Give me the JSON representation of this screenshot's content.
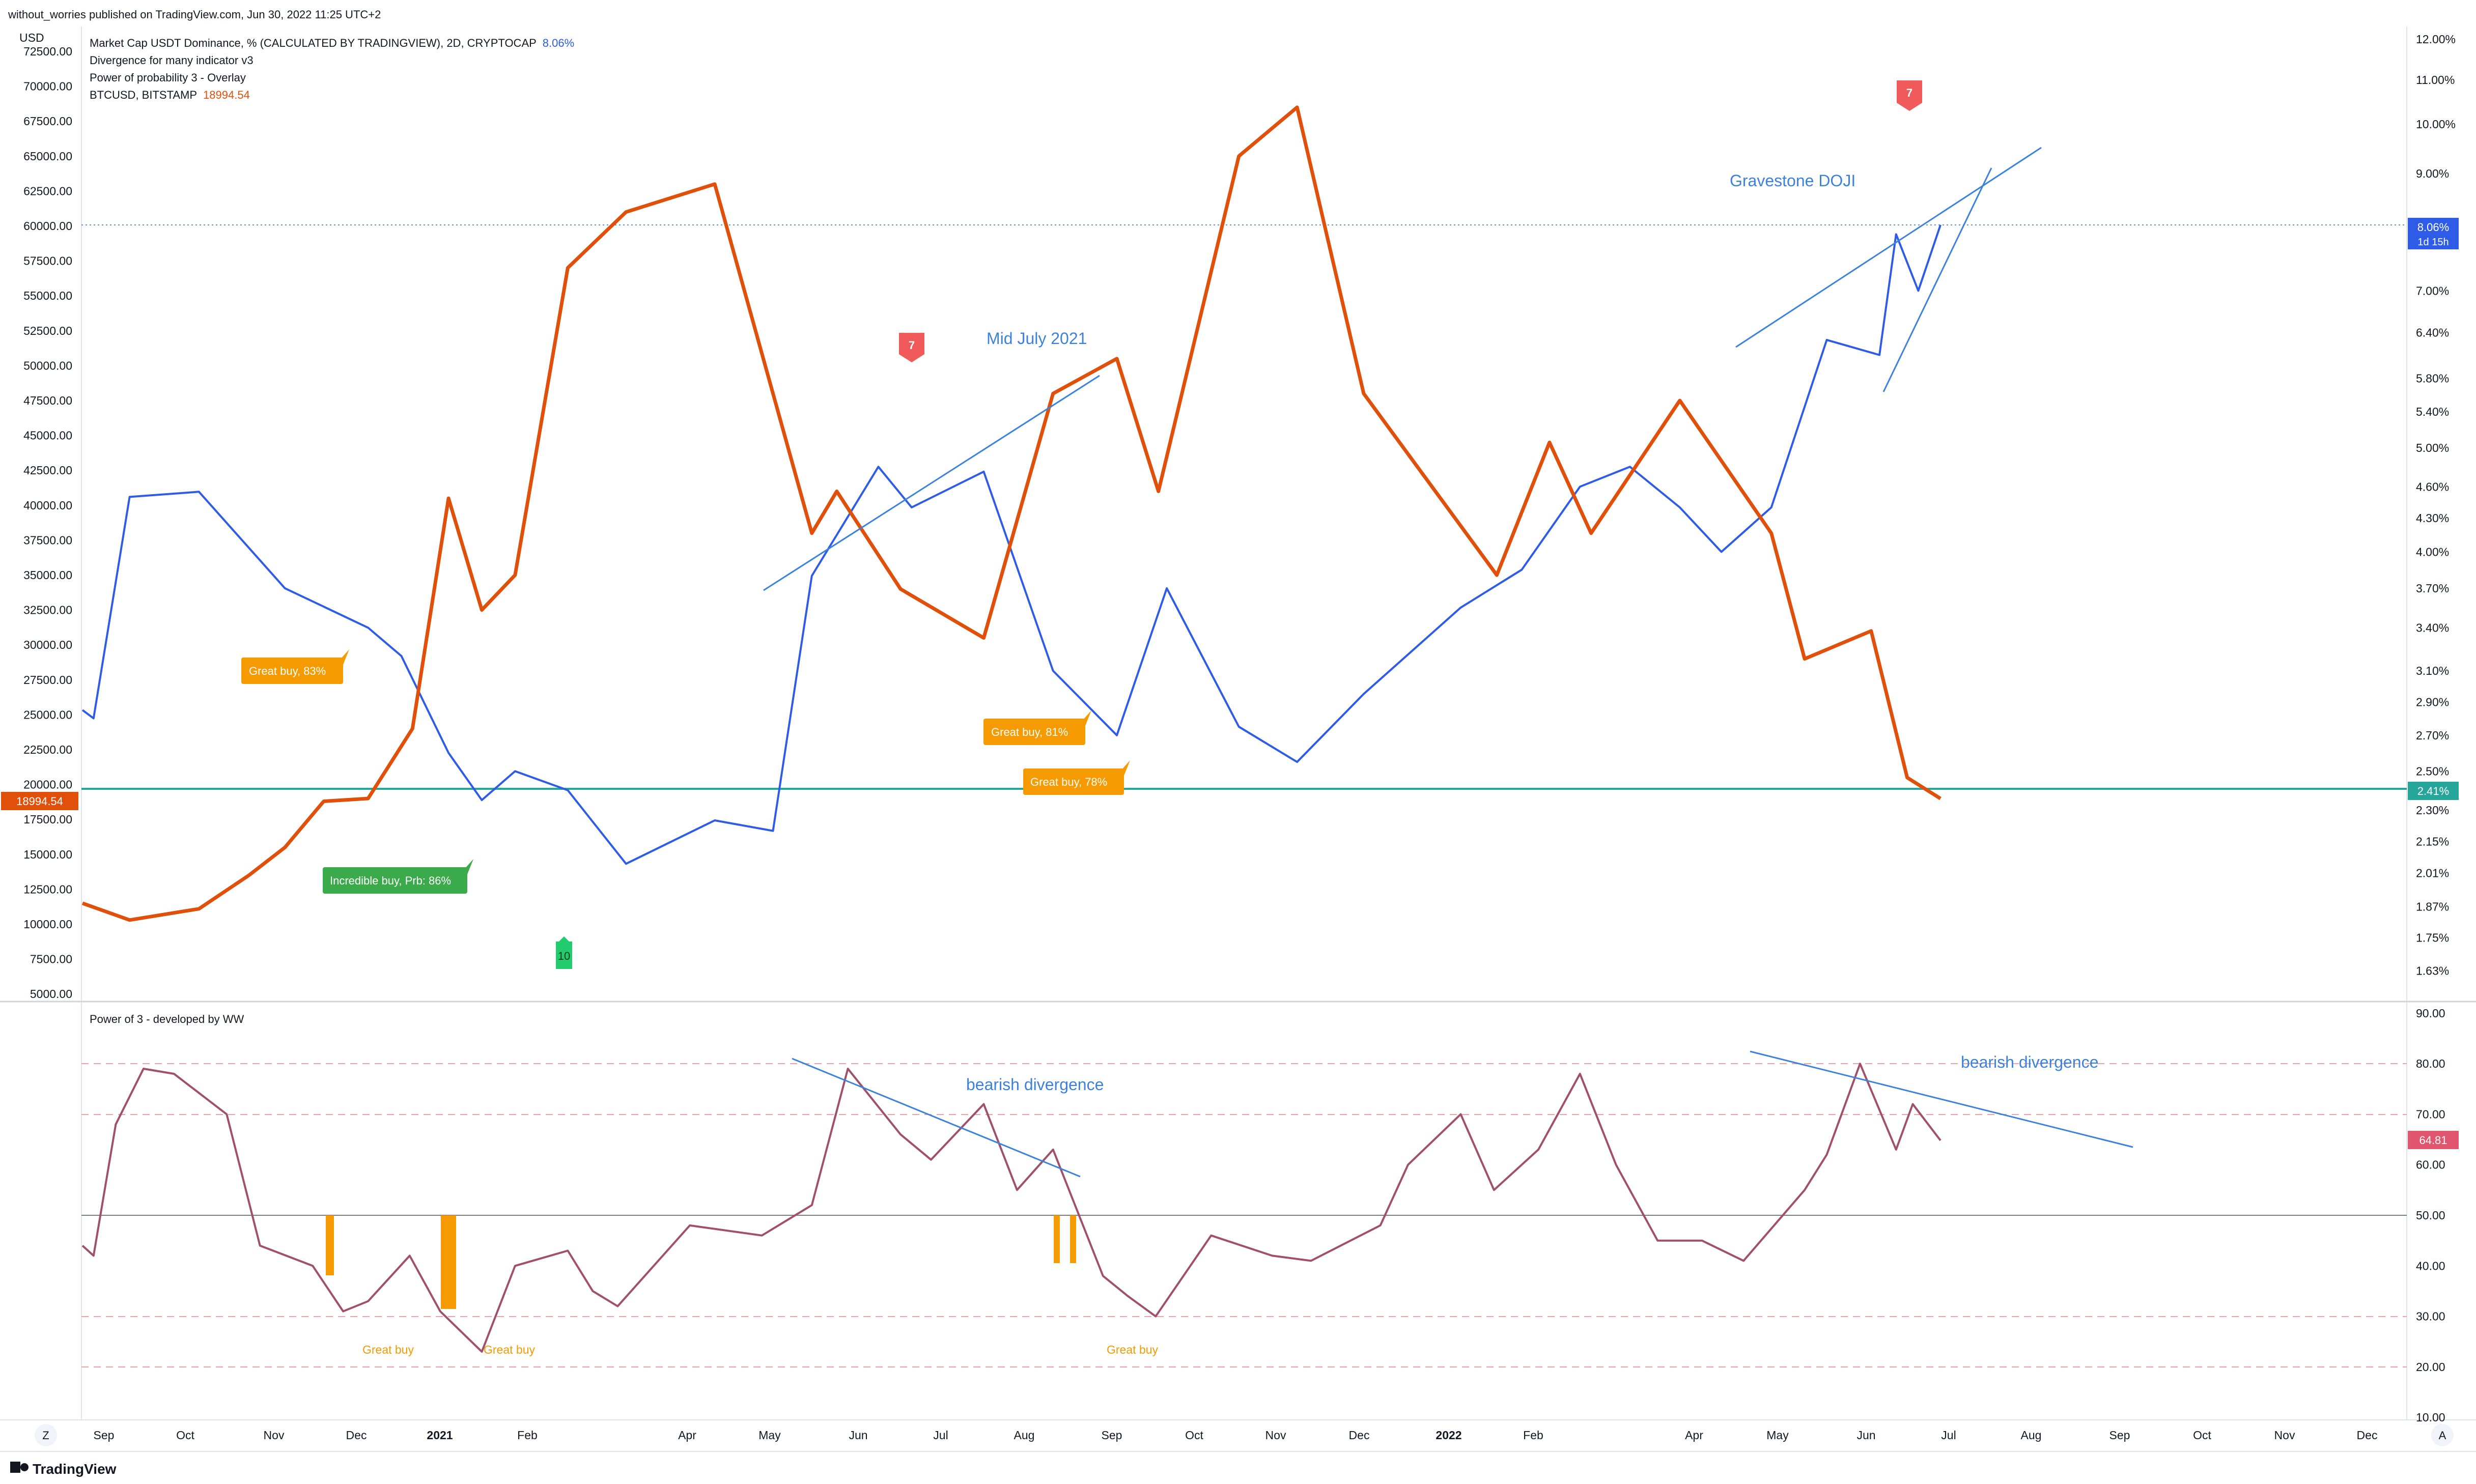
{
  "header": {
    "published_by": "without_worries published on TradingView.com, Jun 30, 2022 11:25 UTC+2"
  },
  "footer": {
    "logo": "TradingView",
    "z_button": "Z",
    "a_button": "A"
  },
  "colors": {
    "btc": "#e0500a",
    "usdt": "#2e5ce6",
    "great_buy": "#f59a00",
    "incredible_buy": "#3aaa4a",
    "sell_tag": "#f05a5a",
    "buy_tag": "#22cc6e",
    "support_line": "#26a69a",
    "annotation": "#3c82dc"
  },
  "main_pane": {
    "left_axis_unit": "USD",
    "legend": [
      {
        "text": "Market Cap USDT Dominance, % (CALCULATED BY TRADINGVIEW), 2D, CRYPTOCAP",
        "value": "8.06%",
        "color": "#2e5ce6"
      },
      {
        "text": "Divergence for many indicator v3",
        "value": "",
        "color": ""
      },
      {
        "text": "Power of probability 3 - Overlay",
        "value": "",
        "color": ""
      },
      {
        "text": "BTCUSD, BITSTAMP",
        "value": "18994.54",
        "color": "#e0500a"
      }
    ],
    "left_ticks": [
      "72500.00",
      "70000.00",
      "67500.00",
      "65000.00",
      "62500.00",
      "60000.00",
      "57500.00",
      "55000.00",
      "52500.00",
      "50000.00",
      "47500.00",
      "45000.00",
      "42500.00",
      "40000.00",
      "37500.00",
      "35000.00",
      "32500.00",
      "30000.00",
      "27500.00",
      "25000.00",
      "22500.00",
      "20000.00",
      "17500.00",
      "15000.00",
      "12500.00",
      "10000.00",
      "7500.00",
      "5000.00"
    ],
    "right_ticks": [
      "12.00%",
      "11.00%",
      "10.00%",
      "9.00%",
      "7.00%",
      "6.40%",
      "5.80%",
      "5.40%",
      "5.00%",
      "4.60%",
      "4.30%",
      "4.00%",
      "3.70%",
      "3.40%",
      "3.10%",
      "2.90%",
      "2.70%",
      "2.50%",
      "2.30%",
      "2.15%",
      "2.01%",
      "1.87%",
      "1.75%",
      "1.63%"
    ],
    "price_tag_btc": "18994.54",
    "price_tag_usdt": "8.06%",
    "price_tag_usdt_sub": "1d 15h",
    "price_tag_support": "2.41%",
    "annotations": {
      "mid_july": "Mid July 2021",
      "gravestone": "Gravestone DOJI"
    },
    "signals": [
      {
        "label": "Great buy,  83%",
        "kind": "great"
      },
      {
        "label": "Great buy,  81%",
        "kind": "great"
      },
      {
        "label": "Great buy,  78%",
        "kind": "great"
      },
      {
        "label": "Incredible buy, Prb: 86%",
        "kind": "incredible"
      }
    ],
    "count_tags": [
      {
        "label": "7",
        "kind": "sell"
      },
      {
        "label": "7",
        "kind": "sell"
      },
      {
        "label": "10",
        "kind": "buy"
      }
    ]
  },
  "sub_pane": {
    "title": "Power of 3 - developed by WW",
    "right_ticks": [
      "90.00",
      "80.00",
      "70.00",
      "60.00",
      "50.00",
      "40.00",
      "30.00",
      "20.00",
      "10.00"
    ],
    "value_tag": "64.81",
    "great_buy_labels": [
      "Great buy",
      "Great buy",
      "Great buy"
    ],
    "divergence_labels": [
      "bearish divergence",
      "bearish divergence"
    ]
  },
  "time_axis": {
    "labels": [
      "Sep",
      "Oct",
      "Nov",
      "Dec",
      "2021",
      "Feb",
      "Apr",
      "May",
      "Jun",
      "Jul",
      "Aug",
      "Sep",
      "Oct",
      "Nov",
      "Dec",
      "2022",
      "Feb",
      "Apr",
      "May",
      "Jun",
      "Jul",
      "Aug",
      "Sep",
      "Oct",
      "Nov",
      "Dec"
    ]
  },
  "chart_data": [
    {
      "type": "line",
      "title": "BTCUSD, BITSTAMP",
      "x_range": [
        "2020-08-29",
        "2022-06-30"
      ],
      "ylim": [
        5000,
        72500
      ],
      "series": [
        {
          "name": "BTCUSD, BITSTAMP",
          "unit": "USD",
          "x": [
            "2020-08-29",
            "2020-09-15",
            "2020-10-10",
            "2020-10-28",
            "2020-11-10",
            "2020-11-24",
            "2020-12-10",
            "2020-12-26",
            "2021-01-08",
            "2021-01-20",
            "2021-02-01",
            "2021-02-20",
            "2021-03-13",
            "2021-04-14",
            "2021-05-19",
            "2021-05-28",
            "2021-06-20",
            "2021-07-20",
            "2021-08-14",
            "2021-09-06",
            "2021-09-21",
            "2021-10-20",
            "2021-11-10",
            "2021-12-04",
            "2022-01-21",
            "2022-02-09",
            "2022-02-24",
            "2022-03-28",
            "2022-04-30",
            "2022-05-12",
            "2022-06-05",
            "2022-06-18",
            "2022-06-30"
          ],
          "values": [
            11500,
            10300,
            11100,
            13500,
            15500,
            18800,
            19000,
            24000,
            40500,
            32500,
            35000,
            57000,
            61000,
            63000,
            38000,
            41000,
            34000,
            30500,
            48000,
            50500,
            41000,
            65000,
            68500,
            48000,
            35000,
            44500,
            38000,
            47500,
            38000,
            29000,
            31000,
            20500,
            18994
          ]
        }
      ]
    },
    {
      "type": "line",
      "title": "Market Cap USDT Dominance, %",
      "x_range": [
        "2020-08-29",
        "2022-06-30"
      ],
      "y_scale": "log",
      "ylim": [
        1.55,
        12.5
      ],
      "series": [
        {
          "name": "Market Cap USDT Dominance, %",
          "unit": "%",
          "x": [
            "2020-08-29",
            "2020-09-02",
            "2020-09-15",
            "2020-10-10",
            "2020-11-10",
            "2020-12-10",
            "2020-12-22",
            "2021-01-08",
            "2021-01-20",
            "2021-02-01",
            "2021-02-20",
            "2021-03-13",
            "2021-04-14",
            "2021-05-05",
            "2021-05-19",
            "2021-06-12",
            "2021-06-24",
            "2021-07-20",
            "2021-08-14",
            "2021-09-06",
            "2021-09-24",
            "2021-10-20",
            "2021-11-10",
            "2021-12-04",
            "2022-01-08",
            "2022-01-30",
            "2022-02-20",
            "2022-03-10",
            "2022-03-28",
            "2022-04-12",
            "2022-04-30",
            "2022-05-20",
            "2022-06-08",
            "2022-06-14",
            "2022-06-22",
            "2022-06-30"
          ],
          "values": [
            2.85,
            2.8,
            4.5,
            4.55,
            3.7,
            3.4,
            3.2,
            2.6,
            2.35,
            2.5,
            2.4,
            2.05,
            2.25,
            2.2,
            3.8,
            4.8,
            4.4,
            4.75,
            3.1,
            2.7,
            3.7,
            2.75,
            2.55,
            2.95,
            3.55,
            3.85,
            4.6,
            4.8,
            4.4,
            4.0,
            4.4,
            6.3,
            6.1,
            7.9,
            7.0,
            8.06
          ]
        }
      ]
    },
    {
      "type": "line",
      "title": "Power of 3 - developed by WW",
      "x_range": [
        "2020-08-29",
        "2022-06-30"
      ],
      "ylim": [
        5,
        92
      ],
      "series": [
        {
          "name": "Power of 3 - developed by WW",
          "x": [
            "2020-08-29",
            "2020-09-02",
            "2020-09-10",
            "2020-09-20",
            "2020-10-01",
            "2020-10-20",
            "2020-11-01",
            "2020-11-20",
            "2020-12-01",
            "2020-12-10",
            "2020-12-25",
            "2021-01-05",
            "2021-01-20",
            "2021-02-01",
            "2021-02-20",
            "2021-03-01",
            "2021-03-10",
            "2021-04-05",
            "2021-05-01",
            "2021-05-19",
            "2021-06-01",
            "2021-06-20",
            "2021-07-01",
            "2021-07-20",
            "2021-08-01",
            "2021-08-14",
            "2021-09-01",
            "2021-09-10",
            "2021-09-20",
            "2021-10-10",
            "2021-11-01",
            "2021-11-15",
            "2021-12-10",
            "2021-12-20",
            "2022-01-08",
            "2022-01-20",
            "2022-02-05",
            "2022-02-20",
            "2022-03-05",
            "2022-03-20",
            "2022-04-05",
            "2022-04-20",
            "2022-05-12",
            "2022-05-20",
            "2022-06-01",
            "2022-06-14",
            "2022-06-20",
            "2022-06-30"
          ],
          "values": [
            44,
            42,
            68,
            79,
            78,
            70,
            44,
            40,
            31,
            33,
            42,
            31,
            23,
            40,
            43,
            35,
            32,
            48,
            46,
            52,
            79,
            66,
            61,
            72,
            55,
            63,
            38,
            34,
            30,
            46,
            42,
            41,
            48,
            60,
            70,
            55,
            63,
            78,
            60,
            45,
            45,
            41,
            55,
            62,
            80,
            63,
            72,
            64.81
          ]
        }
      ]
    }
  ]
}
